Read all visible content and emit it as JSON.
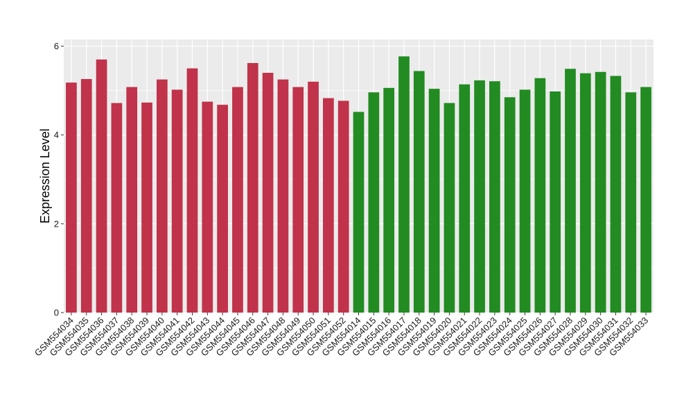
{
  "chart_data": {
    "type": "bar",
    "title": "",
    "xlabel": "",
    "ylabel": "Expression Level",
    "ylim": [
      0,
      6.15
    ],
    "yticks": [
      0,
      2,
      4,
      6
    ],
    "grid": true,
    "legend": "none",
    "colors": {
      "panel_background": "#ebebeb",
      "grid_major": "#ffffff",
      "group_1": "#c0334a",
      "group_2": "#228b22"
    },
    "categories": [
      "GSM554034",
      "GSM554035",
      "GSM554036",
      "GSM554037",
      "GSM554038",
      "GSM554039",
      "GSM554040",
      "GSM554041",
      "GSM554042",
      "GSM554043",
      "GSM554044",
      "GSM554045",
      "GSM554046",
      "GSM554047",
      "GSM554048",
      "GSM554049",
      "GSM554050",
      "GSM554051",
      "GSM554052",
      "GSM554014",
      "GSM554015",
      "GSM554016",
      "GSM554017",
      "GSM554018",
      "GSM554019",
      "GSM554020",
      "GSM554021",
      "GSM554022",
      "GSM554023",
      "GSM554024",
      "GSM554025",
      "GSM554026",
      "GSM554027",
      "GSM554028",
      "GSM554029",
      "GSM554030",
      "GSM554031",
      "GSM554032",
      "GSM554033"
    ],
    "values": [
      5.18,
      5.26,
      5.7,
      4.72,
      5.08,
      4.73,
      5.25,
      5.02,
      5.5,
      4.75,
      4.68,
      5.08,
      5.62,
      5.4,
      5.25,
      5.08,
      5.2,
      4.83,
      4.77,
      4.52,
      4.96,
      5.06,
      5.77,
      5.44,
      5.04,
      4.72,
      5.14,
      5.23,
      5.21,
      4.85,
      5.02,
      5.28,
      4.98,
      5.49,
      5.39,
      5.42,
      5.33,
      4.96,
      5.08
    ],
    "groups": [
      1,
      1,
      1,
      1,
      1,
      1,
      1,
      1,
      1,
      1,
      1,
      1,
      1,
      1,
      1,
      1,
      1,
      1,
      1,
      2,
      2,
      2,
      2,
      2,
      2,
      2,
      2,
      2,
      2,
      2,
      2,
      2,
      2,
      2,
      2,
      2,
      2,
      2,
      2
    ]
  }
}
